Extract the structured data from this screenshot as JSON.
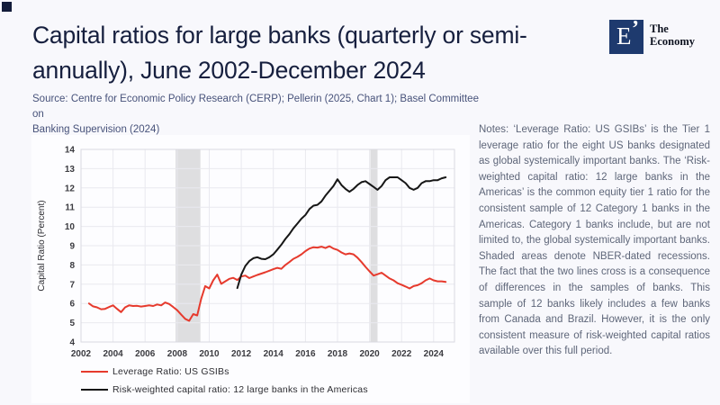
{
  "page": {
    "title_line1": "Capital ratios for large banks (quarterly or semi-",
    "title_line2": "annually), June 2002-December 2024",
    "source_line1": "Source: Centre for Economic Policy Research (CERP); Pellerin (2025, Chart 1); Basel Committee on",
    "source_line2": "Banking Supervision (2024)",
    "notes": "Notes: ‘Leverage Ratio: US GSIBs’ is the Tier 1 leverage ratio for the eight US banks designated as global systemically important banks. The ‘Risk-weighted capital ratio: 12 large banks in the Americas’ is the common equity tier 1 ratio for the consistent sample of 12 Category 1 banks in the Americas. Category 1 banks include, but are not limited to, the global systemically important banks. Shaded areas denote NBER-dated recessions. The fact that the two lines cross is a consequence of differences in the samples of banks. This sample of 12 banks likely includes a few banks from Canada and Brazil. However, it is the only consistent measure of risk-weighted capital ratios available over this full period."
  },
  "logo": {
    "letter": "E",
    "mark": "’",
    "name_line1": "The",
    "name_line2": "Economy",
    "box_color": "#1e3a6e"
  },
  "chart_data": {
    "type": "line",
    "title": "",
    "xlabel": "",
    "ylabel": "Capital Ratio (Percent)",
    "ylim": [
      4,
      14
    ],
    "xlim": [
      2002,
      2025.3
    ],
    "x_ticks": [
      2002,
      2004,
      2006,
      2008,
      2010,
      2012,
      2014,
      2016,
      2018,
      2020,
      2022,
      2024
    ],
    "y_ticks": [
      4,
      5,
      6,
      7,
      8,
      9,
      10,
      11,
      12,
      13,
      14
    ],
    "grid": true,
    "grid_color": "#e9e9ef",
    "band_color": "#dedee0",
    "recession_bands": [
      [
        2007.9,
        2009.45
      ],
      [
        2020.05,
        2020.5
      ]
    ],
    "legend_position": "bottom-left",
    "series": [
      {
        "name": "Leverage Ratio: US GSIBs",
        "color": "#e63a2d",
        "x_start": 2002.5,
        "x_step": 0.25,
        "values": [
          6.0,
          5.85,
          5.8,
          5.7,
          5.72,
          5.82,
          5.9,
          5.72,
          5.55,
          5.8,
          5.9,
          5.87,
          5.88,
          5.84,
          5.87,
          5.9,
          5.87,
          5.95,
          5.9,
          6.05,
          5.97,
          5.82,
          5.65,
          5.42,
          5.2,
          5.1,
          5.45,
          5.38,
          6.25,
          6.9,
          6.78,
          7.2,
          7.5,
          7.02,
          7.15,
          7.28,
          7.33,
          7.22,
          7.4,
          7.45,
          7.32,
          7.4,
          7.48,
          7.55,
          7.62,
          7.7,
          7.78,
          7.85,
          7.8,
          8.0,
          8.15,
          8.32,
          8.42,
          8.55,
          8.72,
          8.85,
          8.92,
          8.9,
          8.95,
          8.88,
          8.97,
          8.85,
          8.78,
          8.65,
          8.55,
          8.6,
          8.55,
          8.38,
          8.15,
          7.9,
          7.67,
          7.45,
          7.52,
          7.6,
          7.45,
          7.3,
          7.2,
          7.05,
          6.97,
          6.88,
          6.78,
          6.9,
          6.95,
          7.05,
          7.2,
          7.3,
          7.2,
          7.15,
          7.15,
          7.12
        ]
      },
      {
        "name": "Risk-weighted capital ratio: 12 large banks in the Americas",
        "color": "#161616",
        "x_start": 2011.75,
        "x_step": 0.25,
        "values": [
          6.8,
          7.5,
          7.95,
          8.2,
          8.35,
          8.4,
          8.32,
          8.3,
          8.4,
          8.55,
          8.8,
          9.05,
          9.35,
          9.6,
          9.9,
          10.15,
          10.4,
          10.6,
          10.9,
          11.08,
          11.12,
          11.3,
          11.6,
          11.85,
          12.1,
          12.45,
          12.15,
          11.95,
          11.8,
          11.95,
          12.15,
          12.3,
          12.35,
          12.2,
          12.05,
          11.9,
          12.1,
          12.4,
          12.55,
          12.55,
          12.55,
          12.4,
          12.25,
          12.0,
          11.9,
          12.0,
          12.25,
          12.35,
          12.35,
          12.4,
          12.4,
          12.5,
          12.55
        ]
      }
    ]
  }
}
